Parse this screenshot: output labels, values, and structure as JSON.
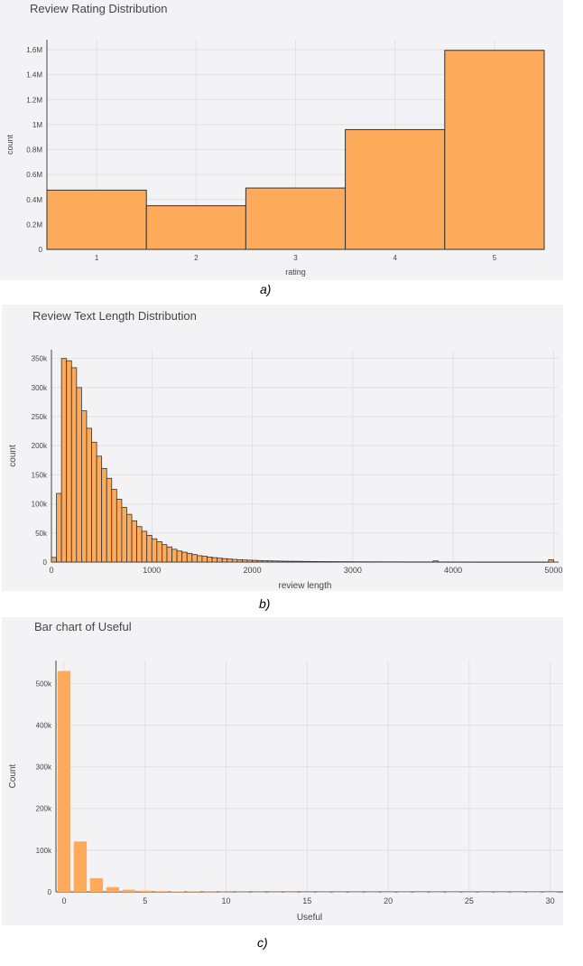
{
  "captions": [
    "a)",
    "b)",
    "c)"
  ],
  "chart_data": [
    {
      "type": "bar",
      "title": "Review Rating Distribution",
      "xlabel": "rating",
      "ylabel": "count",
      "categories": [
        "1",
        "2",
        "3",
        "4",
        "5"
      ],
      "values": [
        475000,
        350000,
        492000,
        960000,
        1595000
      ],
      "ylim": [
        0,
        1680000
      ],
      "yticks": [
        0,
        200000,
        400000,
        600000,
        800000,
        1000000,
        1200000,
        1400000,
        1600000
      ],
      "ytick_labels": [
        "0",
        "0.2M",
        "0.4M",
        "0.6M",
        "0.8M",
        "1M",
        "1.2M",
        "1.4M",
        "1.6M"
      ],
      "grid": true,
      "color": "#fdaa5b"
    },
    {
      "type": "bar",
      "title": "Review Text Length Distribution",
      "xlabel": "review length",
      "ylabel": "count",
      "bin_width": 50,
      "bin_starts": [
        0,
        50,
        100,
        150,
        200,
        250,
        300,
        350,
        400,
        450,
        500,
        550,
        600,
        650,
        700,
        750,
        800,
        850,
        900,
        950,
        1000,
        1050,
        1100,
        1150,
        1200,
        1250,
        1300,
        1350,
        1400,
        1450,
        1500,
        1550,
        1600,
        1650,
        1700,
        1750,
        1800,
        1850,
        1900,
        1950,
        2000,
        2050,
        2100,
        2150,
        2200,
        2250,
        2300,
        2350,
        2400,
        2450,
        2500,
        2550,
        2600,
        2650,
        2700,
        2750,
        2800,
        2850,
        2900,
        2950,
        3000,
        3050,
        3100,
        3150,
        3200,
        3250,
        3300,
        3350,
        3400,
        3450,
        3500,
        3550,
        3600,
        3650,
        3700,
        3750,
        3800,
        3850,
        3900,
        3950,
        4000,
        4050,
        4100,
        4150,
        4200,
        4250,
        4300,
        4350,
        4400,
        4450,
        4500,
        4550,
        4600,
        4650,
        4700,
        4750,
        4800,
        4850,
        4900,
        4950
      ],
      "values": [
        8000,
        118000,
        350000,
        346000,
        334000,
        300000,
        260000,
        230000,
        206000,
        182000,
        161000,
        144000,
        125000,
        108000,
        94000,
        82000,
        71000,
        61000,
        53000,
        46000,
        40000,
        35000,
        30000,
        26000,
        22000,
        19000,
        17000,
        15000,
        13000,
        11000,
        10000,
        8600,
        7600,
        6700,
        5900,
        5200,
        4600,
        4100,
        3600,
        3200,
        2900,
        2600,
        2300,
        2100,
        1900,
        1700,
        1500,
        1400,
        1300,
        1200,
        1100,
        1000,
        900,
        850,
        800,
        750,
        700,
        650,
        600,
        550,
        520,
        490,
        460,
        430,
        400,
        380,
        360,
        340,
        320,
        300,
        280,
        270,
        260,
        250,
        240,
        230,
        2000,
        220,
        210,
        200,
        190,
        180,
        170,
        160,
        150,
        140,
        130,
        120,
        110,
        100,
        100,
        100,
        100,
        100,
        100,
        100,
        100,
        100,
        100,
        4000
      ],
      "xlim": [
        0,
        5050
      ],
      "xticks": [
        0,
        1000,
        2000,
        3000,
        4000,
        5000
      ],
      "xtick_labels": [
        "0",
        "1000",
        "2000",
        "3000",
        "4000",
        "5000"
      ],
      "ylim": [
        0,
        365000
      ],
      "yticks": [
        0,
        50000,
        100000,
        150000,
        200000,
        250000,
        300000,
        350000
      ],
      "ytick_labels": [
        "0",
        "50k",
        "100k",
        "150k",
        "200k",
        "250k",
        "300k",
        "350k"
      ],
      "grid": true,
      "color": "#fdaa5b"
    },
    {
      "type": "bar",
      "title": "Bar chart of Useful",
      "xlabel": "Useful",
      "ylabel": "Count",
      "x": [
        0,
        1,
        2,
        3,
        4,
        5,
        6,
        7,
        8,
        9,
        10,
        11,
        12,
        13,
        14,
        15,
        16,
        17,
        18,
        19,
        20,
        21,
        22,
        23,
        24,
        25,
        26,
        27,
        28,
        29,
        30
      ],
      "values": [
        530000,
        121000,
        33000,
        11500,
        5200,
        2800,
        1700,
        1100,
        800,
        600,
        450,
        350,
        280,
        230,
        190,
        160,
        130,
        110,
        95,
        80,
        70,
        60,
        52,
        45,
        40,
        35,
        30,
        27,
        24,
        21,
        19
      ],
      "xlim": [
        -0.5,
        30.8
      ],
      "xticks": [
        0,
        5,
        10,
        15,
        20,
        25,
        30
      ],
      "xtick_labels": [
        "0",
        "5",
        "10",
        "15",
        "20",
        "25",
        "30"
      ],
      "ylim": [
        0,
        555000
      ],
      "yticks": [
        0,
        100000,
        200000,
        300000,
        400000,
        500000
      ],
      "ytick_labels": [
        "0",
        "100k",
        "200k",
        "300k",
        "400k",
        "500k"
      ],
      "grid": true,
      "color": "#fdaa5b"
    }
  ]
}
